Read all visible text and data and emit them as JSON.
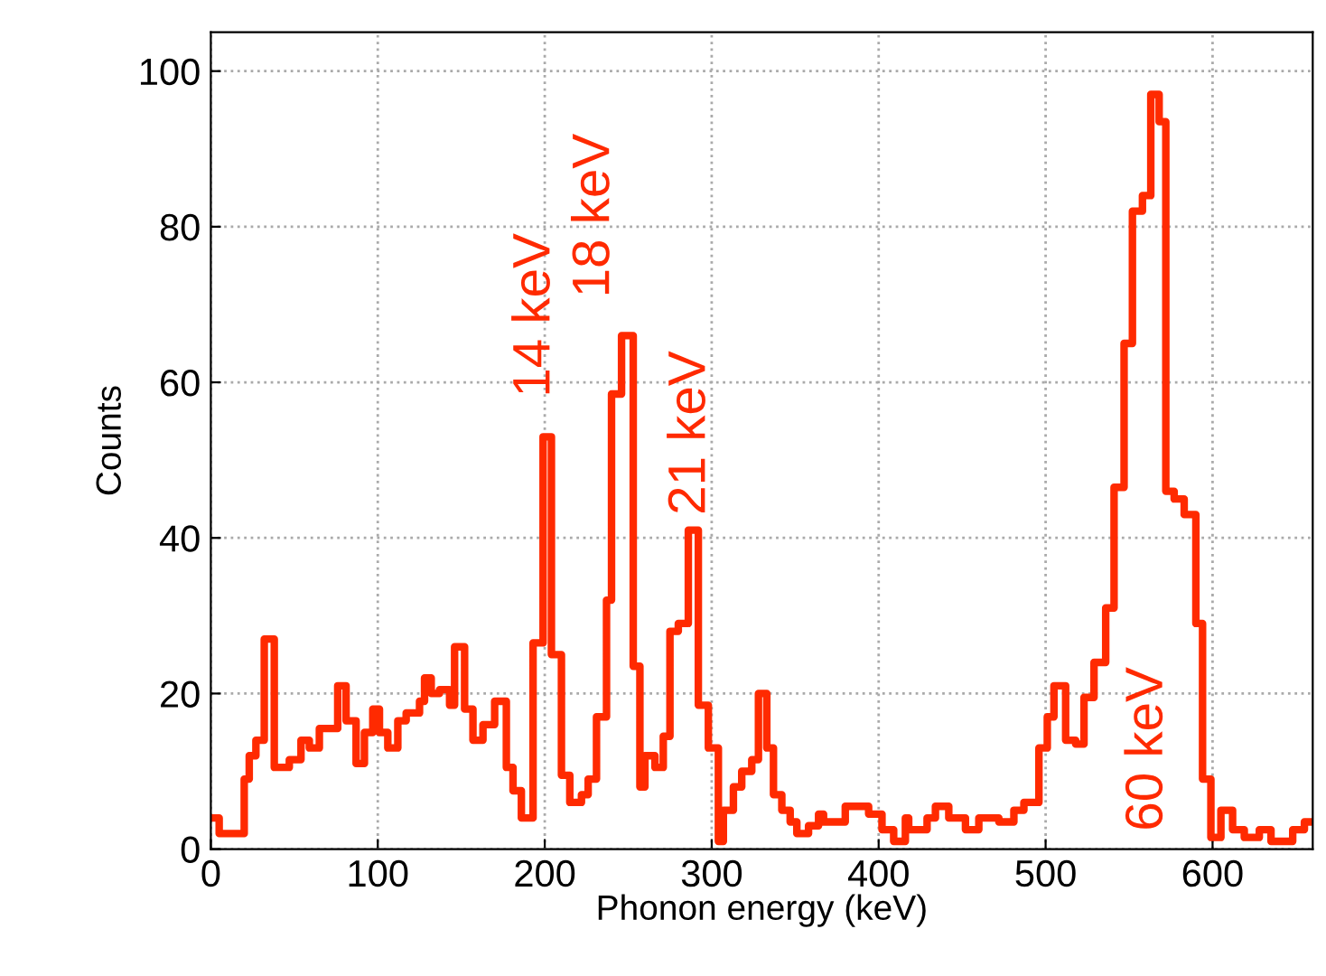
{
  "chart_data": {
    "type": "histogram",
    "xlabel": "Phonon energy (keV)",
    "ylabel": "Counts",
    "color": "#ff2a00",
    "bins": [
      0,
      5,
      20,
      23,
      27,
      32,
      38,
      47,
      54,
      59,
      65,
      76,
      81,
      87,
      92,
      97,
      101,
      106,
      112,
      117,
      125,
      128,
      132,
      137,
      143,
      146,
      152,
      157,
      163,
      170,
      177,
      181,
      186,
      193,
      199,
      204,
      210,
      215,
      222,
      226,
      231,
      237,
      240,
      246,
      253,
      257,
      260,
      266,
      271,
      275,
      280,
      286,
      292,
      298,
      304,
      307,
      313,
      318,
      324,
      328,
      333,
      337,
      342,
      347,
      351,
      358,
      364,
      367,
      380,
      394,
      402,
      409,
      416,
      418,
      429,
      434,
      442,
      452,
      460,
      472,
      481,
      487,
      496,
      501,
      505,
      512,
      518,
      523,
      529,
      536,
      541,
      547,
      552,
      558,
      563,
      568,
      572,
      577,
      583,
      590,
      594,
      599,
      605,
      612,
      619,
      628,
      635,
      648,
      655,
      660
    ],
    "values": [
      4,
      2,
      9,
      12,
      14,
      27,
      10.5,
      11.5,
      14,
      13,
      15.5,
      21,
      16.5,
      11,
      15,
      18,
      15,
      13,
      16.5,
      17.5,
      19,
      22,
      20,
      20.5,
      18.5,
      26,
      18,
      14,
      16,
      19,
      10.5,
      7.5,
      4,
      26.5,
      53,
      25,
      9.5,
      6,
      7,
      9,
      17,
      32,
      58.5,
      66,
      23.5,
      8,
      12,
      10.5,
      14.5,
      28,
      29,
      41,
      18.5,
      13,
      1,
      5,
      8,
      10,
      11.5,
      20,
      13,
      7,
      5,
      3.5,
      2,
      3,
      4.5,
      3.5,
      5.5,
      4.5,
      2.5,
      1,
      4,
      2.5,
      4,
      5.5,
      4,
      2.5,
      4,
      3.5,
      5,
      6,
      13,
      17,
      21,
      14,
      13.5,
      19.5,
      24,
      31,
      46.5,
      65,
      82,
      84,
      97,
      93.5,
      46,
      45,
      43,
      29,
      9,
      1.5,
      5,
      2.5,
      1.5,
      2.5,
      1,
      2.5,
      3.5
    ],
    "xlim": [
      0,
      660
    ],
    "ylim": [
      0,
      105
    ],
    "xticks": [
      0,
      100,
      200,
      300,
      400,
      500,
      600
    ],
    "yticks": [
      0,
      20,
      40,
      60,
      80,
      100
    ],
    "grid": true,
    "annotations": [
      "14 keV",
      "18 keV",
      "21 keV",
      "60 keV"
    ]
  }
}
